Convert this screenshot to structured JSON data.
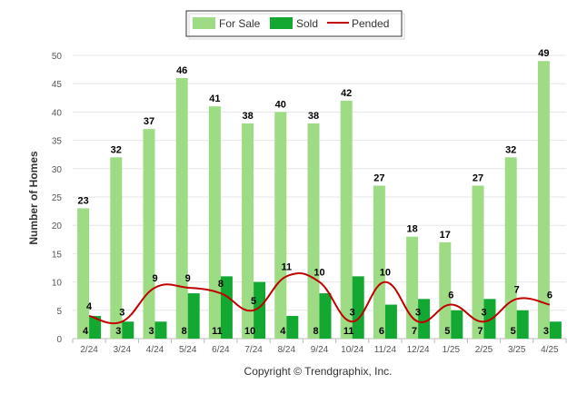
{
  "chart_data": {
    "type": "bar",
    "categories": [
      "2/24",
      "3/24",
      "4/24",
      "5/24",
      "6/24",
      "7/24",
      "8/24",
      "9/24",
      "10/24",
      "11/24",
      "12/24",
      "1/25",
      "2/25",
      "3/25",
      "4/25"
    ],
    "series": [
      {
        "name": "For Sale",
        "type": "bar",
        "color": "#9ddc85",
        "values": [
          23,
          32,
          37,
          46,
          41,
          38,
          40,
          38,
          42,
          27,
          18,
          17,
          27,
          32,
          49
        ]
      },
      {
        "name": "Sold",
        "type": "bar",
        "color": "#12a832",
        "values": [
          4,
          3,
          3,
          8,
          11,
          10,
          4,
          8,
          11,
          6,
          7,
          5,
          7,
          5,
          3
        ]
      },
      {
        "name": "Pended",
        "type": "line",
        "color": "#c00000",
        "values": [
          4,
          3,
          9,
          9,
          8,
          5,
          11,
          10,
          3,
          10,
          3,
          6,
          3,
          7,
          6
        ]
      }
    ],
    "ylabel": "Number of Homes",
    "ylim": [
      0,
      50
    ],
    "yticks": [
      0,
      5,
      10,
      15,
      20,
      25,
      30,
      35,
      40,
      45,
      50
    ],
    "grid": true,
    "legend": "top-center",
    "credit": "Copyright © Trendgraphix, Inc."
  }
}
